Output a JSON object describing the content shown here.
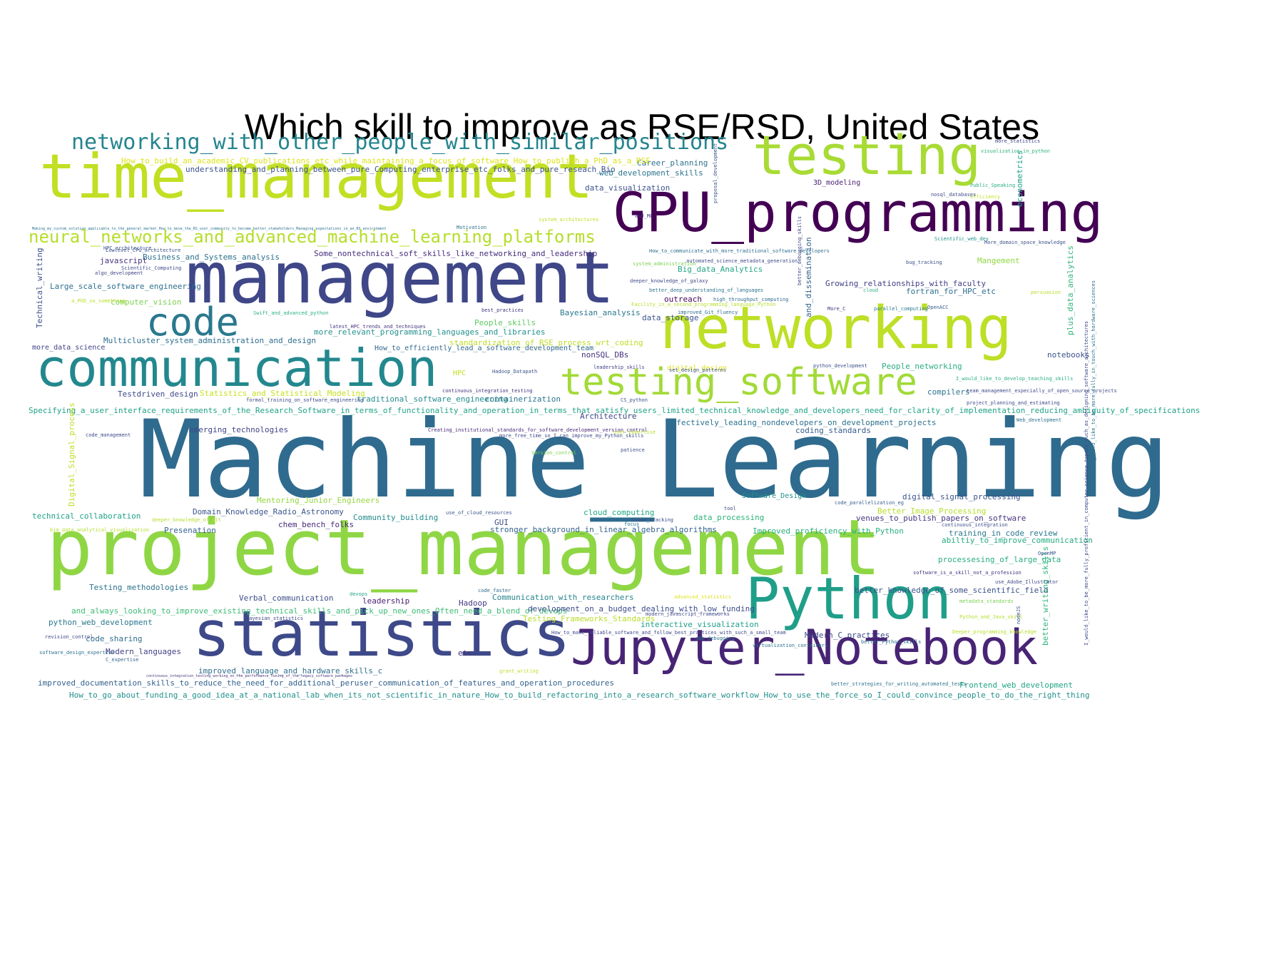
{
  "title": "Which skill to improve as RSE/RSD, United States",
  "palette": "viridis",
  "words": [
    {
      "text": "Machine_Learning",
      "color": "#2f6b8e"
    },
    {
      "text": "project_management",
      "color": "#8fd645"
    },
    {
      "text": "management",
      "color": "#3f4788"
    },
    {
      "text": "time_management",
      "color": "#c2df23"
    },
    {
      "text": "GPU_programming",
      "color": "#440154"
    },
    {
      "text": "networking",
      "color": "#bddf26"
    },
    {
      "text": "communication",
      "color": "#23888e"
    },
    {
      "text": "statistics",
      "color": "#3e4989"
    },
    {
      "text": "Jupyter_Notebook",
      "color": "#482475"
    },
    {
      "text": "Python",
      "color": "#1f9e89"
    },
    {
      "text": "testing",
      "color": "#a8db34"
    },
    {
      "text": "testing_software",
      "color": "#a2da37"
    },
    {
      "text": "code",
      "color": "#2a788e"
    },
    {
      "text": "networking_with_other_people_with_similar_positions",
      "color": "#25858e"
    },
    {
      "text": "neural_networks_and_advanced_machine_learning_platforms",
      "color": "#b5de2b"
    },
    {
      "text": "Some_nontechnical_soft_skills_like_networking_and_leadership",
      "color": "#472d7b"
    },
    {
      "text": "Business_and_Systems_analysis",
      "color": "#2c728e"
    },
    {
      "text": "javascript",
      "color": "#46337e"
    },
    {
      "text": "Large_scale_software_engineering",
      "color": "#2d708e"
    },
    {
      "text": "computer_vision",
      "color": "#7ad151"
    },
    {
      "text": "Technical_writing",
      "color": "#3b528b"
    },
    {
      "text": "more_data_science",
      "color": "#414487"
    },
    {
      "text": "Multicluster_system_administration_and_design",
      "color": "#2e6e8e"
    },
    {
      "text": "more_relevant_programming_languages_and_libraries",
      "color": "#21918c"
    },
    {
      "text": "People_skills",
      "color": "#5ec962"
    },
    {
      "text": "standardization_of_RSE_process_wrt_coding",
      "color": "#bddf26"
    },
    {
      "text": "How_to_efficiently_lead_a_software_development_team",
      "color": "#31688e"
    },
    {
      "text": "nonSQL_DBs",
      "color": "#46327e"
    },
    {
      "text": "Testdriven_design",
      "color": "#3e4a89"
    },
    {
      "text": "Statistics_and_Statistical_Modeling",
      "color": "#c8e020"
    },
    {
      "text": "traditional_software_engineering",
      "color": "#238a8d"
    },
    {
      "text": "containerization",
      "color": "#2a768e"
    },
    {
      "text": "HPC",
      "color": "#c5e021"
    },
    {
      "text": "Specifying_a_user_interface_requirements_of_the_Research_Software_in_terms_of_functionality_and_operation_in_terms_that_satisfy_users_limited_technical_knowledge_and_developers_need_for_clarity_of_implementation_reducing_ambiguity_of_specifications",
      "color": "#20a386"
    },
    {
      "text": "emerging_technologies",
      "color": "#404588"
    },
    {
      "text": "Effectively_leading_nondevelopers_on_development_projects",
      "color": "#2d718e"
    },
    {
      "text": "coding_standards",
      "color": "#375b8d"
    },
    {
      "text": "Digital_Signal_process",
      "color": "#bade28"
    },
    {
      "text": "Mentoring_Junior_Engineers",
      "color": "#95d840"
    },
    {
      "text": "Software_Design",
      "color": "#20928c"
    },
    {
      "text": "digital_signal_processing",
      "color": "#3a548c"
    },
    {
      "text": "technical_collaboration",
      "color": "#1fa287"
    },
    {
      "text": "Domain_Knowledge_Radio_Astronomy",
      "color": "#39568c"
    },
    {
      "text": "Community_building",
      "color": "#228c8d"
    },
    {
      "text": "cloud_computing",
      "color": "#21a685"
    },
    {
      "text": "data_processing",
      "color": "#2db27d"
    },
    {
      "text": "Better_Image_Processing",
      "color": "#b5de2b"
    },
    {
      "text": "venues_to_publish_papers_on_software",
      "color": "#463480"
    },
    {
      "text": "Presenation",
      "color": "#355f8d"
    },
    {
      "text": "chem_bench_folks",
      "color": "#482878"
    },
    {
      "text": "GUI",
      "color": "#3b518b"
    },
    {
      "text": "stronger_background_in_linear_algebra_algorithms",
      "color": "#33638d"
    },
    {
      "text": "Improved_proficiency_with_Python",
      "color": "#29af7f"
    },
    {
      "text": "training_in_code_review",
      "color": "#2a788e"
    },
    {
      "text": "abiltiy_to_improve_communication",
      "color": "#25ab82"
    },
    {
      "text": "processesing_of_large_data",
      "color": "#27ad81"
    },
    {
      "text": "Testing_methodologies",
      "color": "#2c728e"
    },
    {
      "text": "better_knowledge_of_some_scientific_field",
      "color": "#3b528b"
    },
    {
      "text": "Verbal_communication",
      "color": "#3d4e8a"
    },
    {
      "text": "leadership",
      "color": "#481f70"
    },
    {
      "text": "Hadoop",
      "color": "#443a83"
    },
    {
      "text": "Communication_with_researchers",
      "color": "#25848e"
    },
    {
      "text": "and_always_looking_to_improve_existing_technical_skills_and_pick_up_new_ones_Often_need_a_blend_of_devops",
      "color": "#3dbc74"
    },
    {
      "text": "development_on_a_budget_dealing_with_low_funding",
      "color": "#3d4d8a"
    },
    {
      "text": "python_web_development",
      "color": "#2a778e"
    },
    {
      "text": "Testing_Frameworks_Standards",
      "color": "#b8de29"
    },
    {
      "text": "interactive_visualization",
      "color": "#1fa088"
    },
    {
      "text": "Modern_C_practices",
      "color": "#3e4989"
    },
    {
      "text": "code_sharing",
      "color": "#2e6d8e"
    },
    {
      "text": "Modern_languages",
      "color": "#424186"
    },
    {
      "text": "etc",
      "color": "#472e7c"
    },
    {
      "text": "improved_language_and_hardware_skills_c",
      "color": "#2e6f8e"
    },
    {
      "text": "improved_documentation_skills_to_reduce_the_need_for_additional_peruser_communication_of_features_and_operation_procedures",
      "color": "#33628d"
    },
    {
      "text": "Frontend_web_development",
      "color": "#21a585"
    },
    {
      "text": "How_to_go_about_funding_a_good_idea_at_a_national_lab_when_its_not_scientific_in_nature_How_to_build_refactoring_into_a_research_software_workflow_How_to_use_the_force_so_I_could_convince_people_to_do_the_right_thing",
      "color": "#21908d"
    },
    {
      "text": "better_writing_skills",
      "color": "#31b57b"
    },
    {
      "text": "Career_planning",
      "color": "#2d708e"
    },
    {
      "text": "web_development_skills",
      "color": "#2b758e"
    },
    {
      "text": "data_visualization",
      "color": "#3b528b"
    },
    {
      "text": "3D_modeling",
      "color": "#482173"
    },
    {
      "text": "econometrics",
      "color": "#1fa287"
    },
    {
      "text": "Big_data_Analytics",
      "color": "#21a685"
    },
    {
      "text": "Growing_relationships_with_faculty",
      "color": "#424086"
    },
    {
      "text": "fortran_for_HPC_etc",
      "color": "#2e6e8e"
    },
    {
      "text": "Bayesian_analysis",
      "color": "#2a788e"
    },
    {
      "text": "data_storage",
      "color": "#3a548c"
    },
    {
      "text": "outreach",
      "color": "#450457"
    },
    {
      "text": "Mangement",
      "color": "#90d743"
    },
    {
      "text": "and_dissemination",
      "color": "#33628d"
    },
    {
      "text": "plus_data_analytics",
      "color": "#2fb47c"
    },
    {
      "text": "notebooks",
      "color": "#3b518b"
    },
    {
      "text": "People_networking",
      "color": "#27ad81"
    },
    {
      "text": "compilers",
      "color": "#2c738e"
    },
    {
      "text": "Architecture",
      "color": "#3f4889"
    },
    {
      "text": "How_to_build_an_academic_CV_publications_etc_while_maintaining_a_focus_of_software_How_to_publish_a_PhD_as_a_RSE",
      "color": "#dde318"
    },
    {
      "text": "understanding_and_planning_between_pure_Computing_enterprise_etc_folks_and_pure_reseach_Bio",
      "color": "#3b518b"
    },
    {
      "text": "algo_development",
      "color": "#404588"
    },
    {
      "text": "digital_design",
      "color": "#dde318"
    },
    {
      "text": "code_management",
      "color": "#3e4989"
    },
    {
      "text": "patience",
      "color": "#3d4e8a"
    },
    {
      "text": "Version_control",
      "color": "#7ad151"
    },
    {
      "text": "system_architectures",
      "color": "#bddf26"
    },
    {
      "text": "Motivation",
      "color": "#2c728e"
    },
    {
      "text": "efficiency",
      "color": "#c2df23"
    },
    {
      "text": "more_statistics",
      "color": "#404688"
    },
    {
      "text": "visualization_in_python",
      "color": "#2fb47c"
    },
    {
      "text": "Public_Speaking",
      "color": "#29af7f"
    },
    {
      "text": "nosql_databases",
      "color": "#3e4989"
    },
    {
      "text": "bug_tracking",
      "color": "#3b528b"
    },
    {
      "text": "persuasion",
      "color": "#b8de29"
    },
    {
      "text": "OpenACC",
      "color": "#355f8d"
    },
    {
      "text": "parallel_computing",
      "color": "#2a788e"
    },
    {
      "text": "More_C",
      "color": "#46337e"
    },
    {
      "text": "cloud",
      "color": "#27ad81"
    },
    {
      "text": "python_development",
      "color": "#3b528b"
    },
    {
      "text": "leadership_skills",
      "color": "#424086"
    },
    {
      "text": "continuous_integration_testing",
      "color": "#46337e"
    },
    {
      "text": "Web_development",
      "color": "#2c738e"
    },
    {
      "text": "project_planning_and_estimating",
      "color": "#3e4a89"
    },
    {
      "text": "Scientific_web_dev",
      "color": "#21918c"
    },
    {
      "text": "More_domain_space_knowledge",
      "color": "#3b528b"
    },
    {
      "text": "latest_HPC_trends_and_techniques",
      "color": "#46327e"
    },
    {
      "text": "improved_Git_fluency",
      "color": "#2e6e8e"
    },
    {
      "text": "high_throughput_computing",
      "color": "#2e6e8e"
    },
    {
      "text": "Creating_institutional_standards_for_software_development_version_control",
      "color": "#482878"
    },
    {
      "text": "more_free_time_so_I_can_improve_my_Python_skills",
      "color": "#3e4989"
    },
    {
      "text": "user_expertise",
      "color": "#b5de2b"
    },
    {
      "text": "code_parallelization_eg",
      "color": "#355f8d"
    },
    {
      "text": "tool",
      "color": "#3e4989"
    },
    {
      "text": "use_of_cloud_resources",
      "color": "#3b528b"
    },
    {
      "text": "code_faster",
      "color": "#31688e"
    },
    {
      "text": "devops",
      "color": "#20a386"
    },
    {
      "text": "Hadoop_Datapath",
      "color": "#3b528b"
    },
    {
      "text": "software_design_expertise",
      "color": "#2c738e"
    },
    {
      "text": "C_expertise",
      "color": "#355f8d"
    },
    {
      "text": "revision_control",
      "color": "#3e4989"
    },
    {
      "text": "grant_writing",
      "color": "#bddf26"
    },
    {
      "text": "better_strategies_for_writing_automated_tests",
      "color": "#2c738e"
    },
    {
      "text": "Deeper_programming_knowledge",
      "color": "#b5de2b"
    },
    {
      "text": "Python_and_Java_skill",
      "color": "#b5de2b"
    },
    {
      "text": "nodeJS",
      "color": "#3b528b"
    },
    {
      "text": "metadata_standards",
      "color": "#7ad151"
    },
    {
      "text": "OpenMP",
      "color": "#3b528b"
    },
    {
      "text": "use_Adobe_Illustrator",
      "color": "#3e4989"
    },
    {
      "text": "software_is_a_skill_not_a_profession",
      "color": "#46337e"
    },
    {
      "text": "continuous_integration",
      "color": "#3b528b"
    },
    {
      "text": "gdb_debugging",
      "color": "#2c738e"
    },
    {
      "text": "virtualization_containers",
      "color": "#2c738e"
    },
    {
      "text": "better_Python_skills",
      "color": "#2e6e8e"
    },
    {
      "text": "advanced_statistics",
      "color": "#dde318"
    },
    {
      "text": "modern_javascript_frameworks",
      "color": "#3e4989"
    },
    {
      "text": "issue_tracking",
      "color": "#3e4989"
    },
    {
      "text": "focus",
      "color": "#2c738e"
    },
    {
      "text": "deeper_knowledge_of_git",
      "color": "#b5de2b"
    },
    {
      "text": "Bayesian_statistics",
      "color": "#3e4989"
    },
    {
      "text": "HPC_architecture",
      "color": "#3b528b"
    },
    {
      "text": "a_PhD_so_something",
      "color": "#b8de29"
    },
    {
      "text": "Swift_and_advanced_python",
      "color": "#29af7f"
    },
    {
      "text": "best_practices",
      "color": "#46337e"
    },
    {
      "text": "deeper_knowledge_of_galaxy",
      "color": "#3e4989"
    },
    {
      "text": "better_deep_understanding_of_languages",
      "color": "#2c738e"
    },
    {
      "text": "automated_science_metadata_generation",
      "color": "#3e4989"
    },
    {
      "text": "How_to_communicate_with_more_traditional_software_developers",
      "color": "#2e6e8e"
    },
    {
      "text": "system_administration",
      "color": "#7ad151"
    },
    {
      "text": "proposal_development",
      "color": "#3b528b"
    },
    {
      "text": "better_debugging_skills",
      "color": "#3e4989"
    },
    {
      "text": "team_management_especially_of_open_source_projects",
      "color": "#3e4989"
    },
    {
      "text": "I_would_like_to_develop_teaching_skills",
      "color": "#29af7f"
    },
    {
      "text": "CS_python",
      "color": "#3b528b"
    },
    {
      "text": "formal_training_on_software_engineering",
      "color": "#3e4989"
    },
    {
      "text": "How_to_make_reliable_software_and_follow_best_practices_with_such_a_small_team",
      "color": "#3e4989"
    },
    {
      "text": "Lowlevel_CPU_architecture",
      "color": "#3b528b"
    },
    {
      "text": "Making_my_custom_solution_applicable_to_the_general_market_How_to_move_the_RS_user_community_to_become_better_stakeholders_Managing_expectations_in_an_RS_environment",
      "color": "#2c738e"
    },
    {
      "text": "Scientific_Computing",
      "color": "#3e4989"
    },
    {
      "text": "continuous_integration_testing_working_on_the_performance_tuning_of_the_legacy_software_packages",
      "color": "#46337e"
    },
    {
      "text": "big_data_analytical_visualization",
      "color": "#b5de2b"
    },
    {
      "text": "I_would_like_to_be_more_fully_proficient_in_computer_science_topics_such_as_designing_software_architectures",
      "color": "#3e4989"
    },
    {
      "text": "I_would_like_to_be_more_fully_in_touch_with_hardware_sciences",
      "color": "#2c738e"
    },
    {
      "text": "set_design_patterns",
      "color": "#3b528b"
    },
    {
      "text": "and_ML",
      "color": "#46337e"
    },
    {
      "text": "Facility_in_a_second_programming_language_Python",
      "color": "#b5de2b"
    }
  ]
}
